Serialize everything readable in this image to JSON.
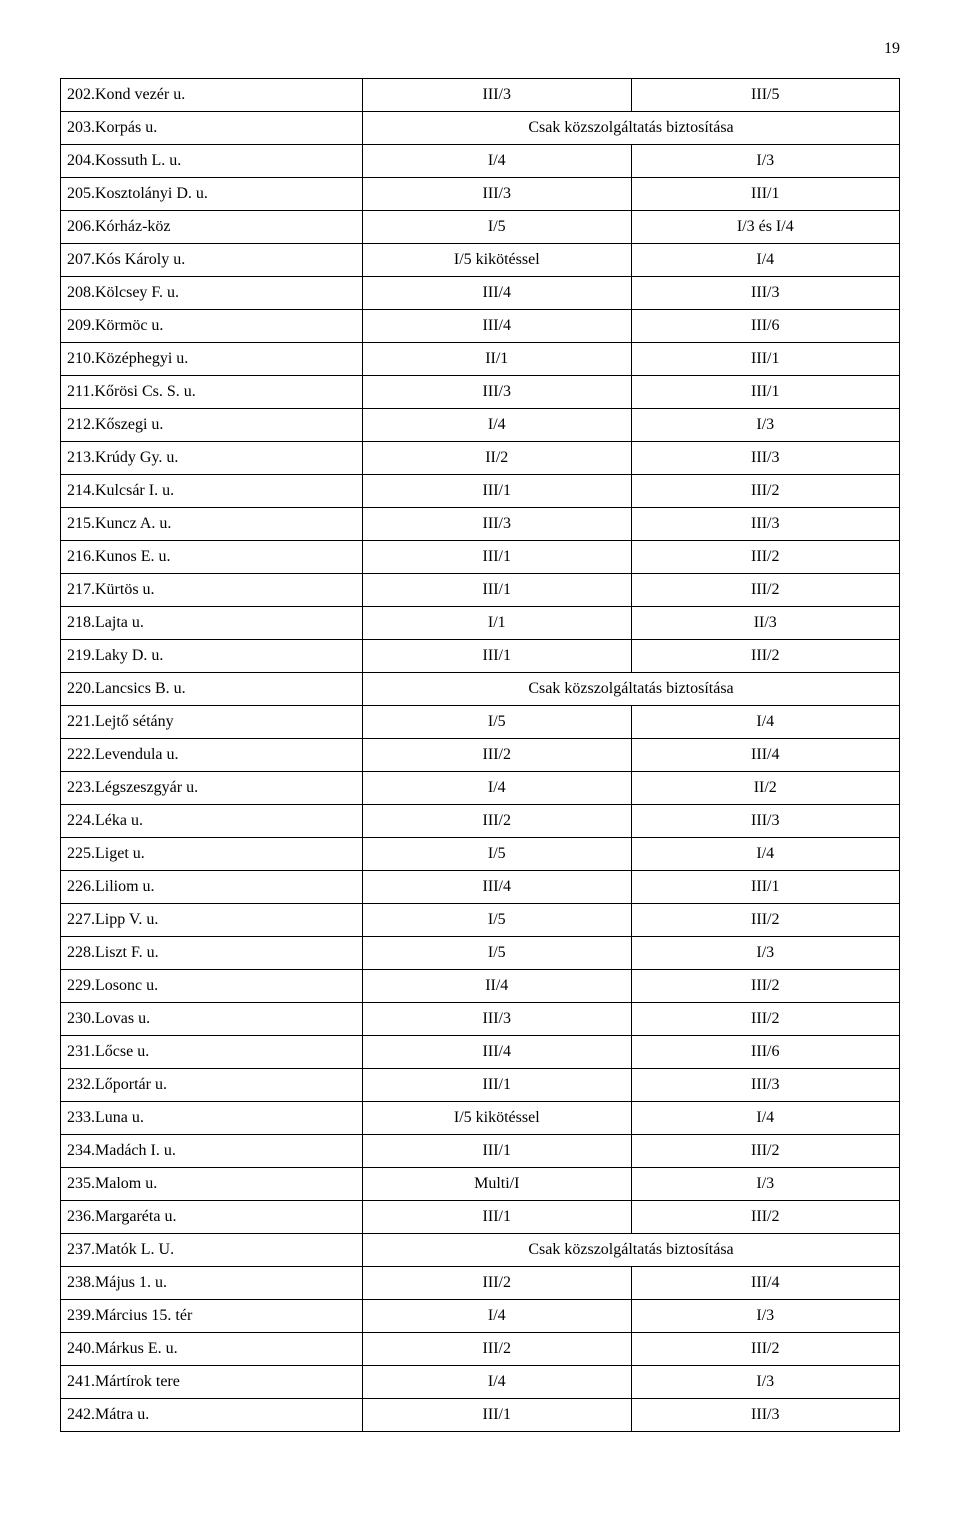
{
  "page_number": "19",
  "rows": [
    {
      "c1": "202.Kond vezér u.",
      "c2": "III/3",
      "c3": "III/5"
    },
    {
      "c1": "203.Korpás u.",
      "merged": "Csak közszolgáltatás biztosítása"
    },
    {
      "c1": "204.Kossuth L. u.",
      "c2": "I/4",
      "c3": "I/3"
    },
    {
      "c1": "205.Kosztolányi D. u.",
      "c2": "III/3",
      "c3": "III/1"
    },
    {
      "c1": "206.Kórház-köz",
      "c2": "I/5",
      "c3": "I/3 és I/4"
    },
    {
      "c1": "207.Kós Károly u.",
      "c2": "I/5 kikötéssel",
      "c3": "I/4"
    },
    {
      "c1": "208.Kölcsey F. u.",
      "c2": "III/4",
      "c3": "III/3"
    },
    {
      "c1": "209.Körmöc u.",
      "c2": "III/4",
      "c3": "III/6"
    },
    {
      "c1": "210.Középhegyi u.",
      "c2": "II/1",
      "c3": "III/1"
    },
    {
      "c1": "211.Kőrösi Cs. S. u.",
      "c2": "III/3",
      "c3": "III/1"
    },
    {
      "c1": "212.Kőszegi u.",
      "c2": "I/4",
      "c3": "I/3"
    },
    {
      "c1": "213.Krúdy Gy. u.",
      "c2": "II/2",
      "c3": "III/3"
    },
    {
      "c1": "214.Kulcsár I. u.",
      "c2": "III/1",
      "c3": "III/2"
    },
    {
      "c1": "215.Kuncz A. u.",
      "c2": "III/3",
      "c3": "III/3"
    },
    {
      "c1": "216.Kunos E. u.",
      "c2": "III/1",
      "c3": "III/2"
    },
    {
      "c1": "217.Kürtös u.",
      "c2": "III/1",
      "c3": "III/2"
    },
    {
      "c1": "218.Lajta u.",
      "c2": "I/1",
      "c3": "II/3"
    },
    {
      "c1": "219.Laky D. u.",
      "c2": "III/1",
      "c3": "III/2"
    },
    {
      "c1": "220.Lancsics B. u.",
      "merged": "Csak közszolgáltatás biztosítása"
    },
    {
      "c1": "221.Lejtő sétány",
      "c2": "I/5",
      "c3": "I/4"
    },
    {
      "c1": "222.Levendula u.",
      "c2": "III/2",
      "c3": "III/4"
    },
    {
      "c1": "223.Légszeszgyár u.",
      "c2": "I/4",
      "c3": "II/2"
    },
    {
      "c1": "224.Léka u.",
      "c2": "III/2",
      "c3": "III/3"
    },
    {
      "c1": "225.Liget u.",
      "c2": "I/5",
      "c3": "I/4"
    },
    {
      "c1": "226.Liliom u.",
      "c2": "III/4",
      "c3": "III/1"
    },
    {
      "c1": "227.Lipp V. u.",
      "c2": "I/5",
      "c3": "III/2"
    },
    {
      "c1": "228.Liszt F. u.",
      "c2": "I/5",
      "c3": "I/3"
    },
    {
      "c1": "229.Losonc u.",
      "c2": "II/4",
      "c3": "III/2"
    },
    {
      "c1": "230.Lovas u.",
      "c2": "III/3",
      "c3": "III/2"
    },
    {
      "c1": "231.Lőcse u.",
      "c2": "III/4",
      "c3": "III/6"
    },
    {
      "c1": "232.Lőportár u.",
      "c2": "III/1",
      "c3": "III/3"
    },
    {
      "c1": "233.Luna u.",
      "c2": "I/5 kikötéssel",
      "c3": "I/4"
    },
    {
      "c1": "234.Madách I. u.",
      "c2": "III/1",
      "c3": "III/2"
    },
    {
      "c1": "235.Malom u.",
      "c2": "Multi/I",
      "c3": "I/3"
    },
    {
      "c1": "236.Margaréta u.",
      "c2": "III/1",
      "c3": "III/2"
    },
    {
      "c1": "237.Matók L. U.",
      "merged": "Csak közszolgáltatás biztosítása"
    },
    {
      "c1": "238.Május 1. u.",
      "c2": "III/2",
      "c3": "III/4"
    },
    {
      "c1": "239.Március 15. tér",
      "c2": "I/4",
      "c3": "I/3"
    },
    {
      "c1": "240.Márkus E. u.",
      "c2": "III/2",
      "c3": "III/2"
    },
    {
      "c1": "241.Mártírok tere",
      "c2": "I/4",
      "c3": "I/3"
    },
    {
      "c1": "242.Mátra u.",
      "c2": "III/1",
      "c3": "III/3"
    }
  ]
}
